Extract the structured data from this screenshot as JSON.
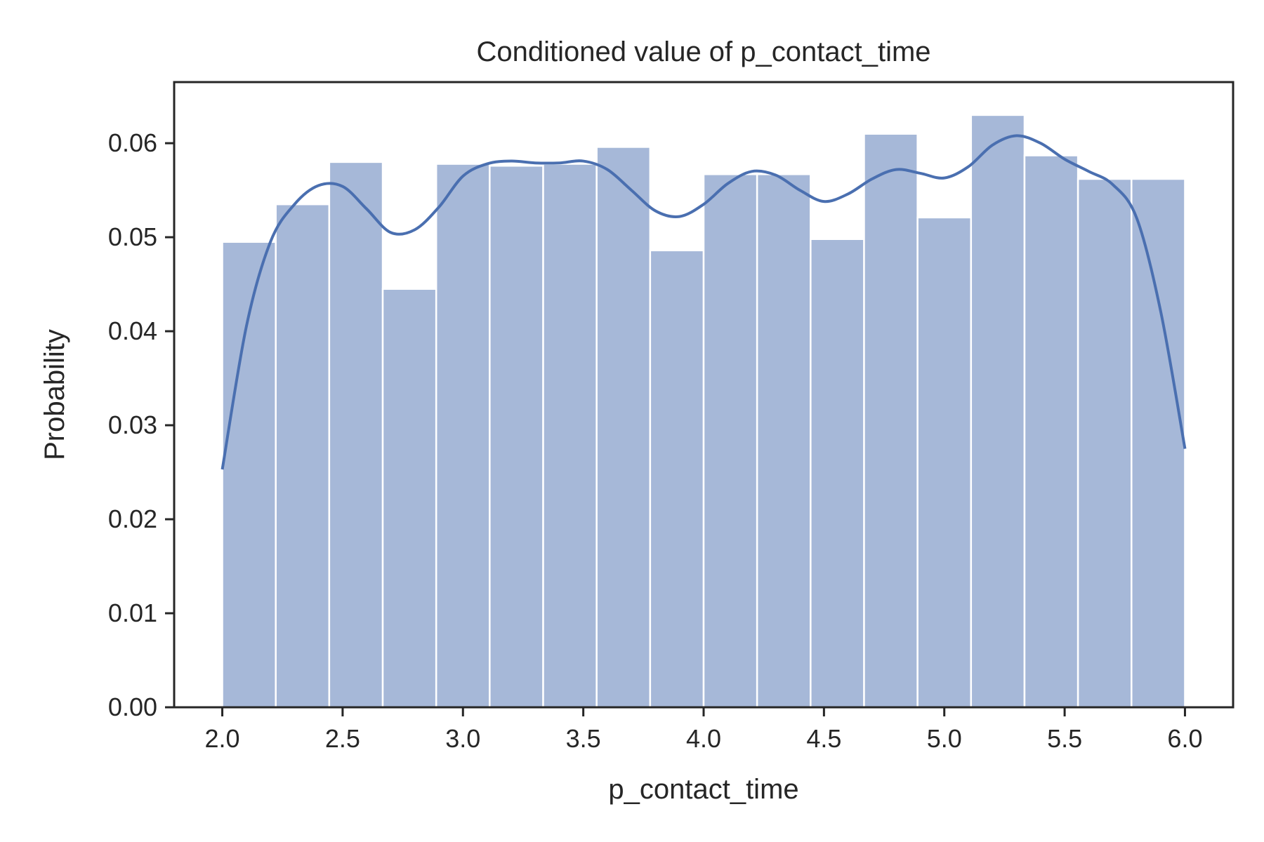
{
  "chart_data": {
    "type": "bar",
    "title": "Conditioned value of p_contact_time",
    "xlabel": "p_contact_time",
    "ylabel": "Probability",
    "xlim": [
      1.8,
      6.2
    ],
    "ylim": [
      0.0,
      0.0665
    ],
    "xticks": [
      2.0,
      2.5,
      3.0,
      3.5,
      4.0,
      4.5,
      5.0,
      5.5,
      6.0
    ],
    "xtick_labels": [
      "2.0",
      "2.5",
      "3.0",
      "3.5",
      "4.0",
      "4.5",
      "5.0",
      "5.5",
      "6.0"
    ],
    "yticks": [
      0.0,
      0.01,
      0.02,
      0.03,
      0.04,
      0.05,
      0.06
    ],
    "ytick_labels": [
      "0.00",
      "0.01",
      "0.02",
      "0.03",
      "0.04",
      "0.05",
      "0.06"
    ],
    "bins": {
      "start": 2.0,
      "end": 6.0,
      "values": [
        0.0495,
        0.0535,
        0.058,
        0.0445,
        0.0578,
        0.0576,
        0.0578,
        0.0596,
        0.0486,
        0.0567,
        0.0567,
        0.0498,
        0.061,
        0.0521,
        0.063,
        0.0587,
        0.0562,
        0.0562
      ]
    },
    "kde": {
      "x": [
        2.0,
        2.1,
        2.2,
        2.3,
        2.4,
        2.5,
        2.6,
        2.7,
        2.8,
        2.9,
        3.0,
        3.1,
        3.2,
        3.3,
        3.4,
        3.5,
        3.6,
        3.7,
        3.8,
        3.9,
        4.0,
        4.1,
        4.2,
        4.3,
        4.4,
        4.5,
        4.6,
        4.7,
        4.8,
        4.9,
        5.0,
        5.1,
        5.2,
        5.3,
        5.4,
        5.5,
        5.6,
        5.7,
        5.8,
        5.9,
        6.0
      ],
      "y": [
        0.0253,
        0.0405,
        0.0495,
        0.0535,
        0.0555,
        0.0554,
        0.053,
        0.0505,
        0.0508,
        0.0532,
        0.0565,
        0.0578,
        0.0581,
        0.0579,
        0.0579,
        0.0581,
        0.0572,
        0.055,
        0.0528,
        0.0522,
        0.0535,
        0.0557,
        0.057,
        0.0566,
        0.055,
        0.0538,
        0.0546,
        0.0562,
        0.0572,
        0.0568,
        0.0563,
        0.0575,
        0.0598,
        0.0608,
        0.06,
        0.0583,
        0.057,
        0.0556,
        0.052,
        0.042,
        0.0275
      ]
    },
    "grid": false,
    "colors": {
      "bar": "#a6b8d8",
      "bar_edge": "#ffffff",
      "line": "#4a6fb0",
      "axes": "#262626"
    }
  }
}
